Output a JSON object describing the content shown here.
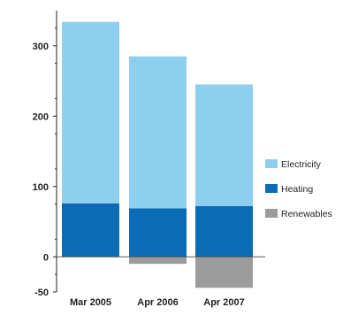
{
  "chart_data": {
    "type": "bar",
    "stacked": true,
    "title": "",
    "xlabel": "",
    "ylabel": "",
    "categories": [
      "Mar 2005",
      "Apr 2006",
      "Apr 2007"
    ],
    "series": [
      {
        "name": "Heating",
        "values": [
          76,
          69,
          72
        ],
        "color": "#0a6cb4"
      },
      {
        "name": "Electricity",
        "values": [
          258,
          216,
          173
        ],
        "color": "#8ecfef"
      },
      {
        "name": "Renewables",
        "values": [
          0,
          -10,
          -44
        ],
        "color": "#9c9c9c"
      }
    ],
    "ylim": [
      -50,
      350
    ],
    "yticks": [
      -50,
      0,
      100,
      200,
      300
    ],
    "grid": false,
    "legend_position": "right",
    "legend_order": [
      "Electricity",
      "Heating",
      "Renewables"
    ]
  }
}
